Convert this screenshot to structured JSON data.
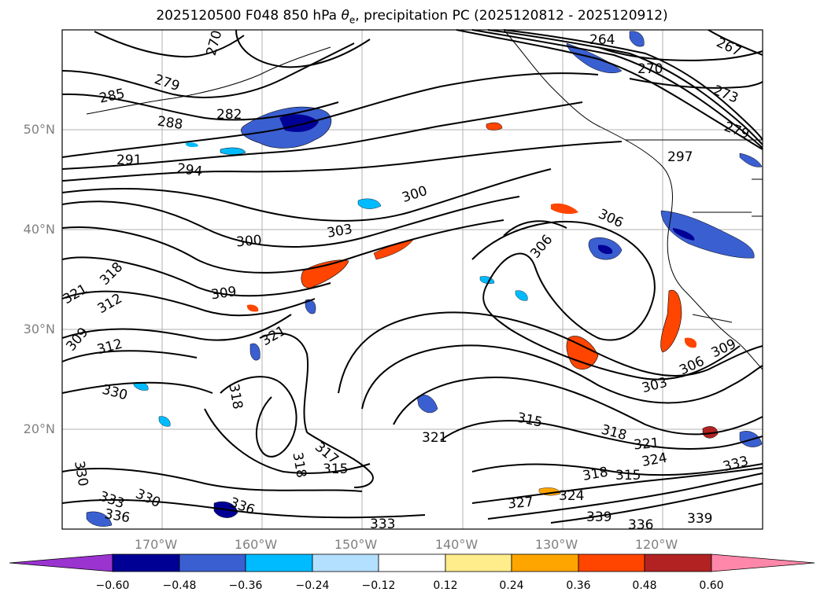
{
  "title": {
    "prefix": "2025120500 F048 850 hPa ",
    "theta_symbol": "θ",
    "theta_sub": "e",
    "suffix": ", precipitation PC (2025120812 - 2025120912)"
  },
  "map": {
    "lat_labels": [
      "50°N",
      "40°N",
      "30°N",
      "20°N"
    ],
    "lon_labels": [
      "170°W",
      "160°W",
      "150°W",
      "140°W",
      "130°W",
      "120°W"
    ],
    "contour_labels": [
      "270",
      "279",
      "285",
      "288",
      "282",
      "291",
      "294",
      "300",
      "303",
      "300",
      "306",
      "306",
      "264",
      "267",
      "270",
      "273",
      "279",
      "297",
      "318",
      "321",
      "312",
      "309",
      "312",
      "309",
      "321",
      "330",
      "318",
      "317",
      "318",
      "315",
      "321",
      "315",
      "303",
      "306",
      "309",
      "318",
      "321",
      "324",
      "318",
      "315",
      "327",
      "324",
      "330",
      "333",
      "336",
      "330",
      "336",
      "333",
      "336",
      "339",
      "336",
      "339",
      "333",
      "321"
    ],
    "colors": {
      "contour": "#000000",
      "grid": "#aaaaaa",
      "coast": "#000000"
    }
  },
  "colorbar": {
    "ticks": [
      "−0.60",
      "−0.48",
      "−0.36",
      "−0.24",
      "−0.12",
      "0.12",
      "0.24",
      "0.36",
      "0.48",
      "0.60"
    ],
    "colors": [
      "#9a33d0",
      "#000095",
      "#3a5fd1",
      "#00bbff",
      "#b3e0ff",
      "#ffffff",
      "#ffec8b",
      "#ffa500",
      "#ff4500",
      "#b22222",
      "#ff88aa"
    ]
  }
}
